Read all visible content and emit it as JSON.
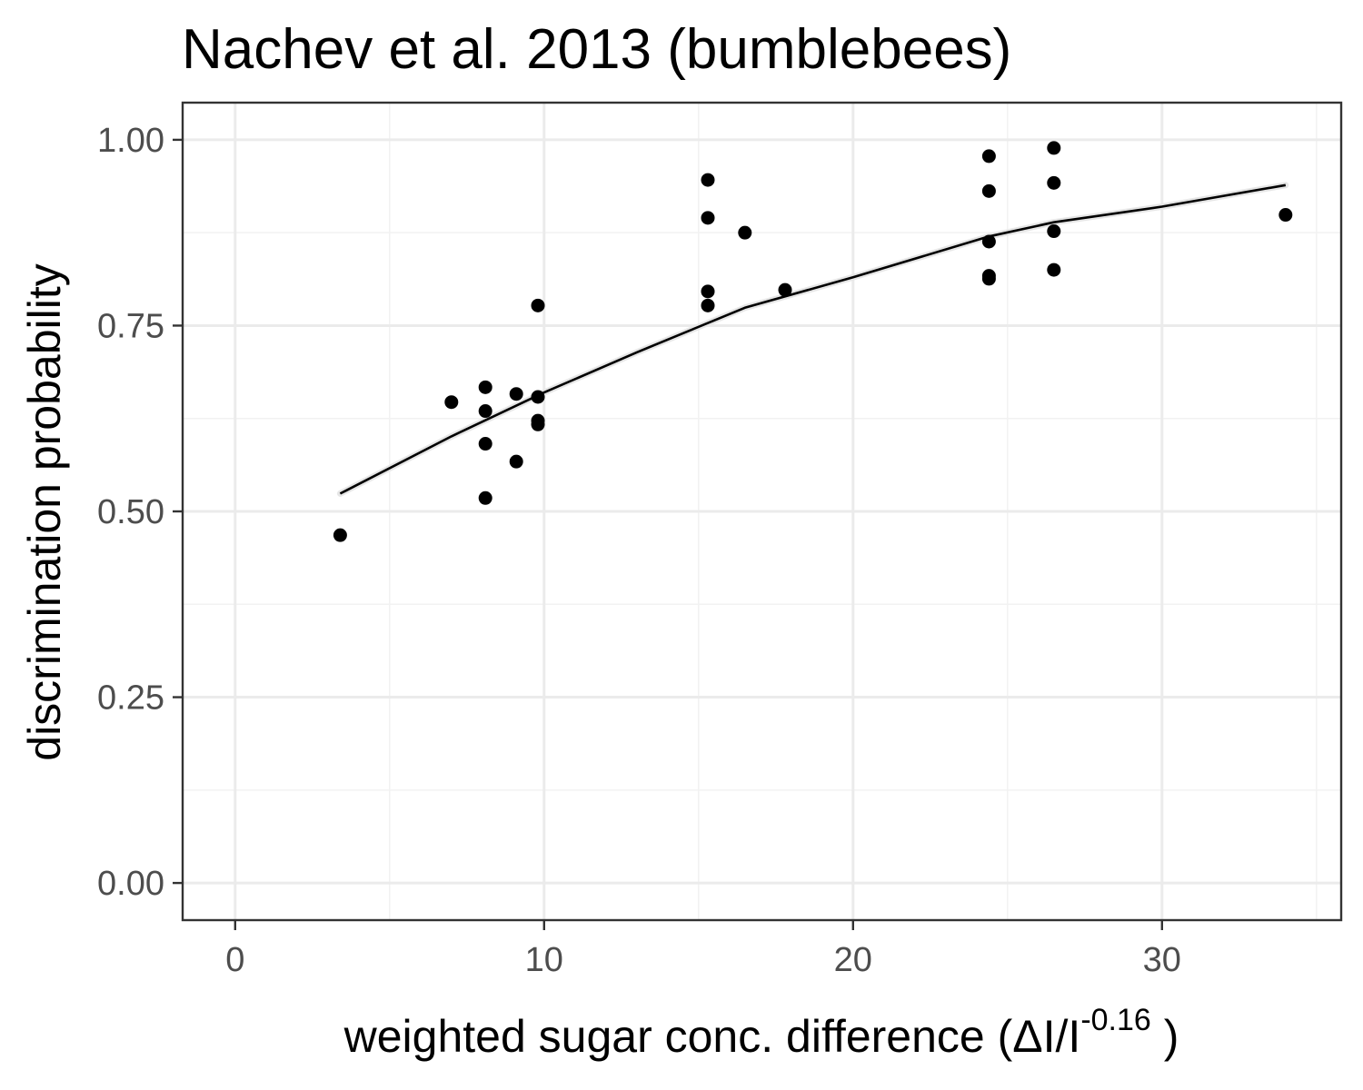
{
  "chart_data": {
    "type": "scatter",
    "title": "Nachev et al. 2013 (bumblebees)",
    "xlabel": {
      "main": "weighted  sugar conc.  difference (ΔI/I",
      "superscript": "-0.16",
      "close": " )"
    },
    "ylabel": "discrimination probability",
    "xlim": [
      -1.7,
      35.8
    ],
    "ylim": [
      -0.05,
      1.05
    ],
    "x_ticks": [
      0,
      10,
      20,
      30
    ],
    "x_tick_labels": [
      "0",
      "10",
      "20",
      "30"
    ],
    "y_ticks": [
      0,
      0.25,
      0.5,
      0.75,
      1
    ],
    "y_tick_labels": [
      "0.00",
      "0.25",
      "0.50",
      "0.75",
      "1.00"
    ],
    "grid": true,
    "legend": "none",
    "point_color": "#000000",
    "points": [
      {
        "x": 3.4,
        "y": 0.468
      },
      {
        "x": 7.0,
        "y": 0.647
      },
      {
        "x": 8.1,
        "y": 0.667
      },
      {
        "x": 8.1,
        "y": 0.635
      },
      {
        "x": 8.1,
        "y": 0.591
      },
      {
        "x": 8.1,
        "y": 0.518
      },
      {
        "x": 9.1,
        "y": 0.658
      },
      {
        "x": 9.1,
        "y": 0.567
      },
      {
        "x": 9.8,
        "y": 0.777
      },
      {
        "x": 9.8,
        "y": 0.654
      },
      {
        "x": 9.8,
        "y": 0.622
      },
      {
        "x": 9.8,
        "y": 0.617
      },
      {
        "x": 15.3,
        "y": 0.946
      },
      {
        "x": 15.3,
        "y": 0.895
      },
      {
        "x": 15.3,
        "y": 0.796
      },
      {
        "x": 15.3,
        "y": 0.777
      },
      {
        "x": 16.5,
        "y": 0.875
      },
      {
        "x": 17.8,
        "y": 0.798
      },
      {
        "x": 24.4,
        "y": 0.978
      },
      {
        "x": 24.4,
        "y": 0.931
      },
      {
        "x": 24.4,
        "y": 0.863
      },
      {
        "x": 24.4,
        "y": 0.817
      },
      {
        "x": 24.4,
        "y": 0.813
      },
      {
        "x": 26.5,
        "y": 0.989
      },
      {
        "x": 26.5,
        "y": 0.942
      },
      {
        "x": 26.5,
        "y": 0.877
      },
      {
        "x": 26.5,
        "y": 0.825
      },
      {
        "x": 34.0,
        "y": 0.899
      }
    ],
    "fit_line": [
      {
        "x": 3.4,
        "y": 0.524
      },
      {
        "x": 7.0,
        "y": 0.601
      },
      {
        "x": 10.0,
        "y": 0.66
      },
      {
        "x": 13.0,
        "y": 0.714
      },
      {
        "x": 16.5,
        "y": 0.774
      },
      {
        "x": 20.0,
        "y": 0.815
      },
      {
        "x": 24.4,
        "y": 0.87
      },
      {
        "x": 26.5,
        "y": 0.889
      },
      {
        "x": 30.0,
        "y": 0.91
      },
      {
        "x": 34.0,
        "y": 0.939
      }
    ]
  }
}
